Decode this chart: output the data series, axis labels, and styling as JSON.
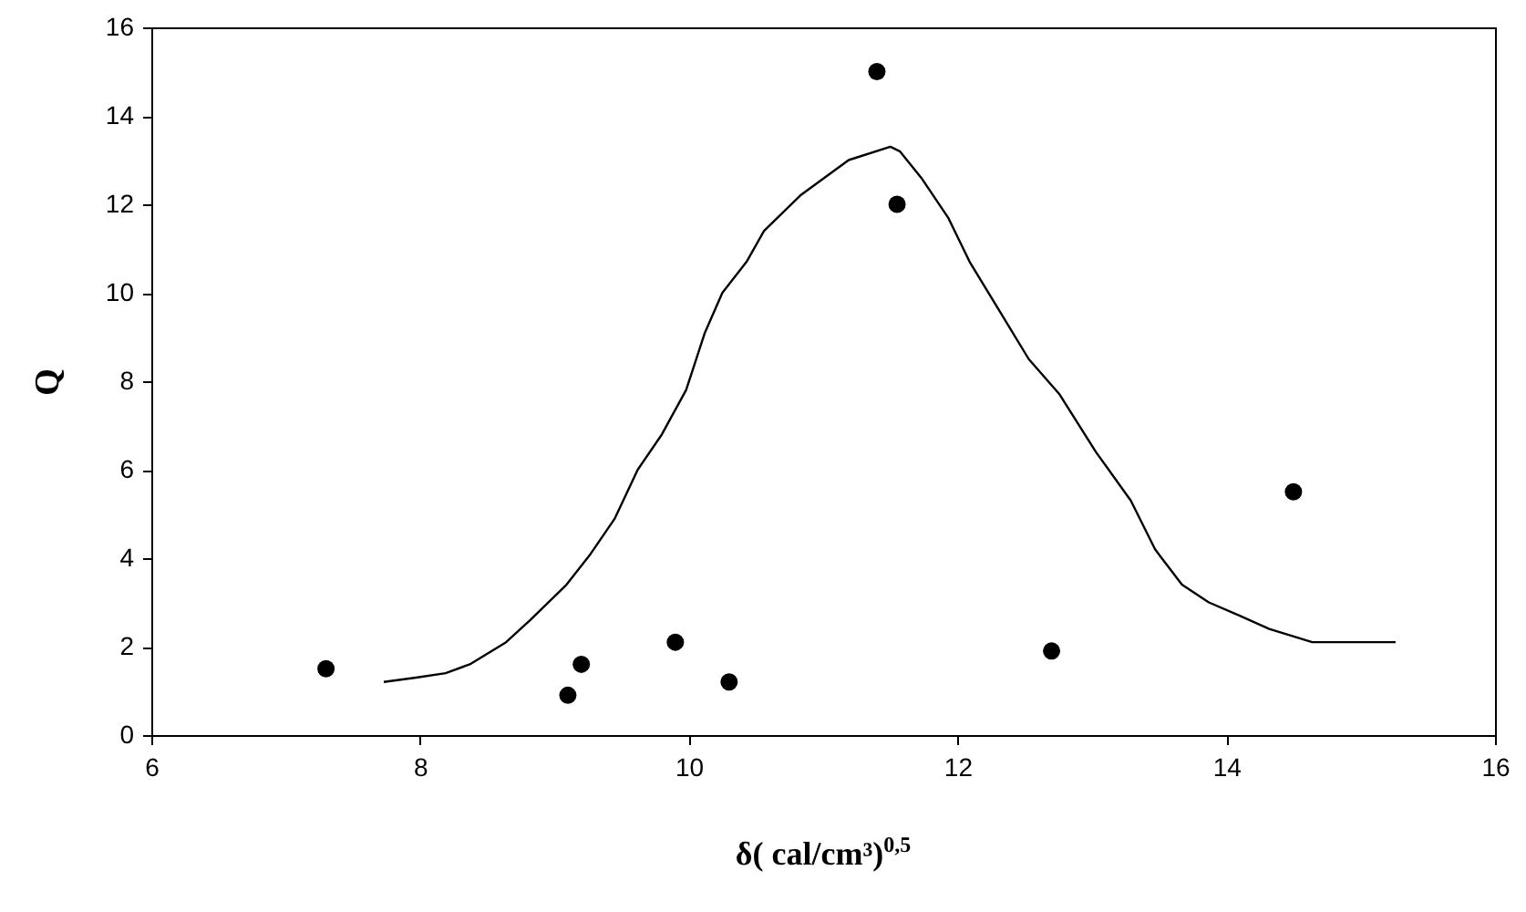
{
  "chart_data": {
    "type": "scatter",
    "xlabel": "δ( cal/cm³)$^{0,5}$",
    "ylabel": "Q",
    "xlim": [
      6,
      16
    ],
    "xticks": [
      6,
      8,
      10,
      12,
      14,
      16
    ],
    "ylim": [
      0,
      16
    ],
    "yticks": [
      0,
      2,
      4,
      6,
      8,
      10,
      12,
      14,
      16
    ],
    "grid": false,
    "marker": "circle",
    "series": [
      {
        "type": "scatter",
        "color": "#000000",
        "x": [
          7.3,
          9.1,
          9.2,
          9.9,
          10.3,
          11.4,
          11.55,
          12.7,
          14.5
        ],
        "values": [
          1.5,
          0.9,
          1.6,
          2.1,
          1.2,
          15.0,
          12.0,
          1.9,
          5.5
        ]
      },
      {
        "type": "line",
        "color": "#000000",
        "marker": "none",
        "line_style": "solid",
        "x": [
          7.73,
          7.97,
          8.19,
          8.37,
          8.64,
          8.82,
          9.09,
          9.27,
          9.45,
          9.62,
          9.8,
          9.98,
          10.12,
          10.25,
          10.43,
          10.56,
          10.83,
          11.19,
          11.5,
          11.57,
          11.73,
          11.93,
          12.09,
          12.31,
          12.53,
          12.76,
          13.03,
          13.29,
          13.47,
          13.67,
          13.87,
          14.1,
          14.32,
          14.64,
          15.26
        ],
        "values": [
          1.2,
          1.3,
          1.4,
          1.6,
          2.1,
          2.6,
          3.4,
          4.1,
          4.9,
          6.0,
          6.8,
          7.8,
          9.1,
          10.0,
          10.7,
          11.4,
          12.2,
          13.0,
          13.3,
          13.2,
          12.6,
          11.7,
          10.7,
          9.6,
          8.5,
          7.7,
          6.4,
          5.3,
          4.2,
          3.4,
          3.0,
          2.7,
          2.4,
          2.1,
          2.1
        ]
      }
    ]
  }
}
